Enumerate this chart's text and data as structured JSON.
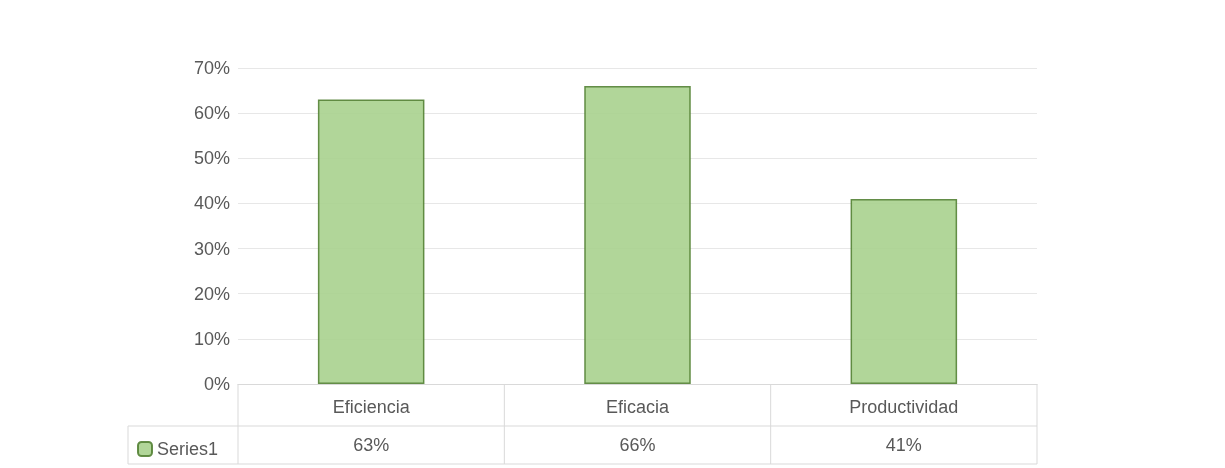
{
  "chart_data": {
    "type": "bar",
    "categories": [
      "Eficiencia",
      "Eficacia",
      "Productividad"
    ],
    "series": [
      {
        "name": "Series1",
        "color": "#a9d18e",
        "values": [
          63,
          66,
          41
        ],
        "value_labels": [
          "63%",
          "66%",
          "41%"
        ]
      }
    ],
    "ylim": [
      0,
      70
    ],
    "yticks": [
      {
        "value": 0,
        "label": "0%"
      },
      {
        "value": 10,
        "label": "10%"
      },
      {
        "value": 20,
        "label": "20%"
      },
      {
        "value": 30,
        "label": "30%"
      },
      {
        "value": 40,
        "label": "40%"
      },
      {
        "value": 50,
        "label": "50%"
      },
      {
        "value": 60,
        "label": "60%"
      },
      {
        "value": 70,
        "label": "70%"
      }
    ],
    "grid": "y",
    "legend": "bottom left"
  }
}
